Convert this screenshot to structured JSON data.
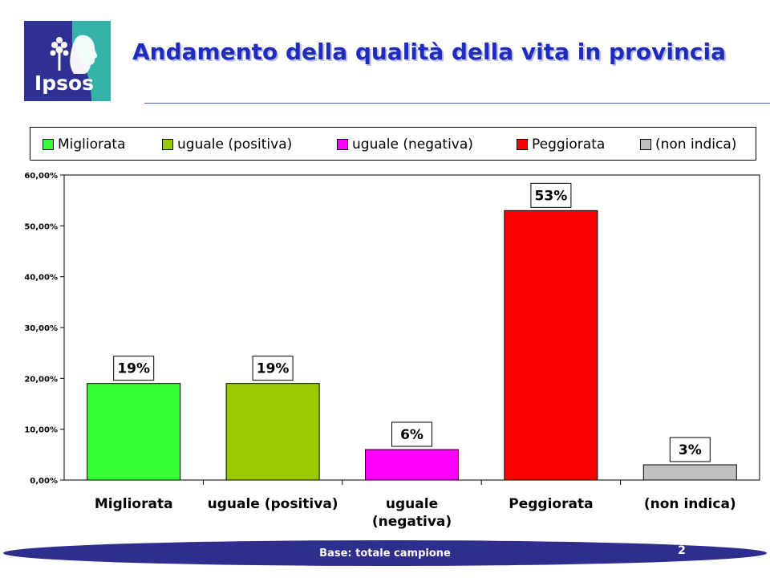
{
  "header": {
    "title": "Andamento della qualità della vita in provincia",
    "logo_text": "Ipsos"
  },
  "footer": {
    "note": "Base: totale campione",
    "page_number": "2"
  },
  "colors": {
    "title": "#1f2bbd",
    "logo_blue": "#2e3192",
    "logo_teal": "#35b3a8",
    "footer_band": "#2e2e8f"
  },
  "chart_data": {
    "type": "bar",
    "title": "",
    "xlabel": "",
    "ylabel": "",
    "ylim": [
      0,
      0.6
    ],
    "y_ticks": [
      "0,00%",
      "10,00%",
      "20,00%",
      "30,00%",
      "40,00%",
      "50,00%",
      "60,00%"
    ],
    "grid": false,
    "legend_position": "top",
    "categories": [
      "Migliorata",
      "uguale (positiva)",
      "uguale (negativa)",
      "Peggiorata",
      "(non indica)"
    ],
    "category_label_lines": [
      [
        "Migliorata"
      ],
      [
        "uguale (positiva)"
      ],
      [
        "uguale",
        "(negativa)"
      ],
      [
        "Peggiorata"
      ],
      [
        "(non indica)"
      ]
    ],
    "values": [
      0.19,
      0.19,
      0.06,
      0.53,
      0.03
    ],
    "data_labels": [
      "19%",
      "19%",
      "6%",
      "53%",
      "3%"
    ],
    "bar_colors": [
      "#33ff33",
      "#99cc00",
      "#ff00ff",
      "#ff0000",
      "#c0c0c0"
    ],
    "legend": [
      {
        "label": "Migliorata",
        "color": "#33ff33"
      },
      {
        "label": "uguale (positiva)",
        "color": "#99cc00"
      },
      {
        "label": "uguale (negativa)",
        "color": "#ff00ff"
      },
      {
        "label": "Peggiorata",
        "color": "#ff0000"
      },
      {
        "label": "(non indica)",
        "color": "#c0c0c0"
      }
    ]
  }
}
